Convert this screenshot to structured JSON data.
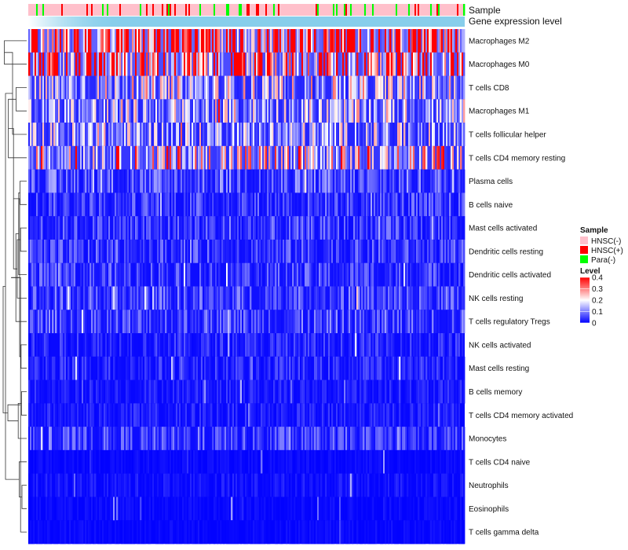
{
  "chart_data": {
    "type": "heatmap",
    "title": "",
    "annotation_tracks": [
      "Sample",
      "Gene expression level"
    ],
    "rows": [
      "Macrophages M2",
      "Macrophages M0",
      "T cells CD8",
      "Macrophages M1",
      "T cells follicular helper",
      "T cells CD4 memory resting",
      "Plasma cells",
      "B cells naive",
      "Mast cells activated",
      "Dendritic cells resting",
      "Dendritic cells activated",
      "NK cells resting",
      "T cells regulatory  Tregs",
      "NK cells activated",
      "Mast cells resting",
      "B cells memory",
      "T cells CD4 memory activated",
      "Monocytes",
      "T cells CD4 naive",
      "Neutrophils",
      "Eosinophils",
      "T cells gamma delta"
    ],
    "row_mean_level": [
      0.22,
      0.17,
      0.09,
      0.085,
      0.08,
      0.12,
      0.04,
      0.03,
      0.03,
      0.03,
      0.03,
      0.035,
      0.035,
      0.02,
      0.02,
      0.015,
      0.015,
      0.03,
      0.005,
      0.01,
      0.005,
      0.005
    ],
    "row_dendrogram": {
      "merges": [
        [
          0,
          1,
          0.95
        ],
        [
          2,
          3,
          0.45
        ],
        [
          22,
          4,
          0.6
        ],
        [
          23,
          5,
          0.78
        ],
        [
          6,
          7,
          0.28
        ],
        [
          8,
          9,
          0.26
        ],
        [
          26,
          10,
          0.34
        ],
        [
          27,
          11,
          0.4
        ],
        [
          28,
          12,
          0.46
        ],
        [
          25,
          29,
          0.56
        ],
        [
          13,
          14,
          0.24
        ],
        [
          15,
          16,
          0.22
        ],
        [
          31,
          32,
          0.3
        ],
        [
          33,
          17,
          0.36
        ],
        [
          30,
          34,
          0.66
        ],
        [
          19,
          20,
          0.2
        ],
        [
          36,
          21,
          0.26
        ],
        [
          37,
          18,
          0.32
        ],
        [
          35,
          38,
          0.8
        ],
        [
          24,
          39,
          0.9
        ],
        [
          40,
          41,
          1.0
        ]
      ]
    },
    "legend": {
      "sample_title": "Sample",
      "samples": [
        {
          "label": "HNSC(-)",
          "color": "#ffc0cb"
        },
        {
          "label": "HNSC(+)",
          "color": "#ff0000"
        },
        {
          "label": "Para(-)",
          "color": "#00ff00"
        }
      ],
      "level_title": "Level",
      "level_ticks": [
        0.4,
        0.3,
        0.2,
        0.1,
        0
      ],
      "level_range": [
        0,
        0.4
      ],
      "level_colors": [
        "#0000ff",
        "#ffffff",
        "#ff0000"
      ],
      "placement": "right"
    },
    "expression_bar_color": "#87ceeb",
    "grid": false
  }
}
